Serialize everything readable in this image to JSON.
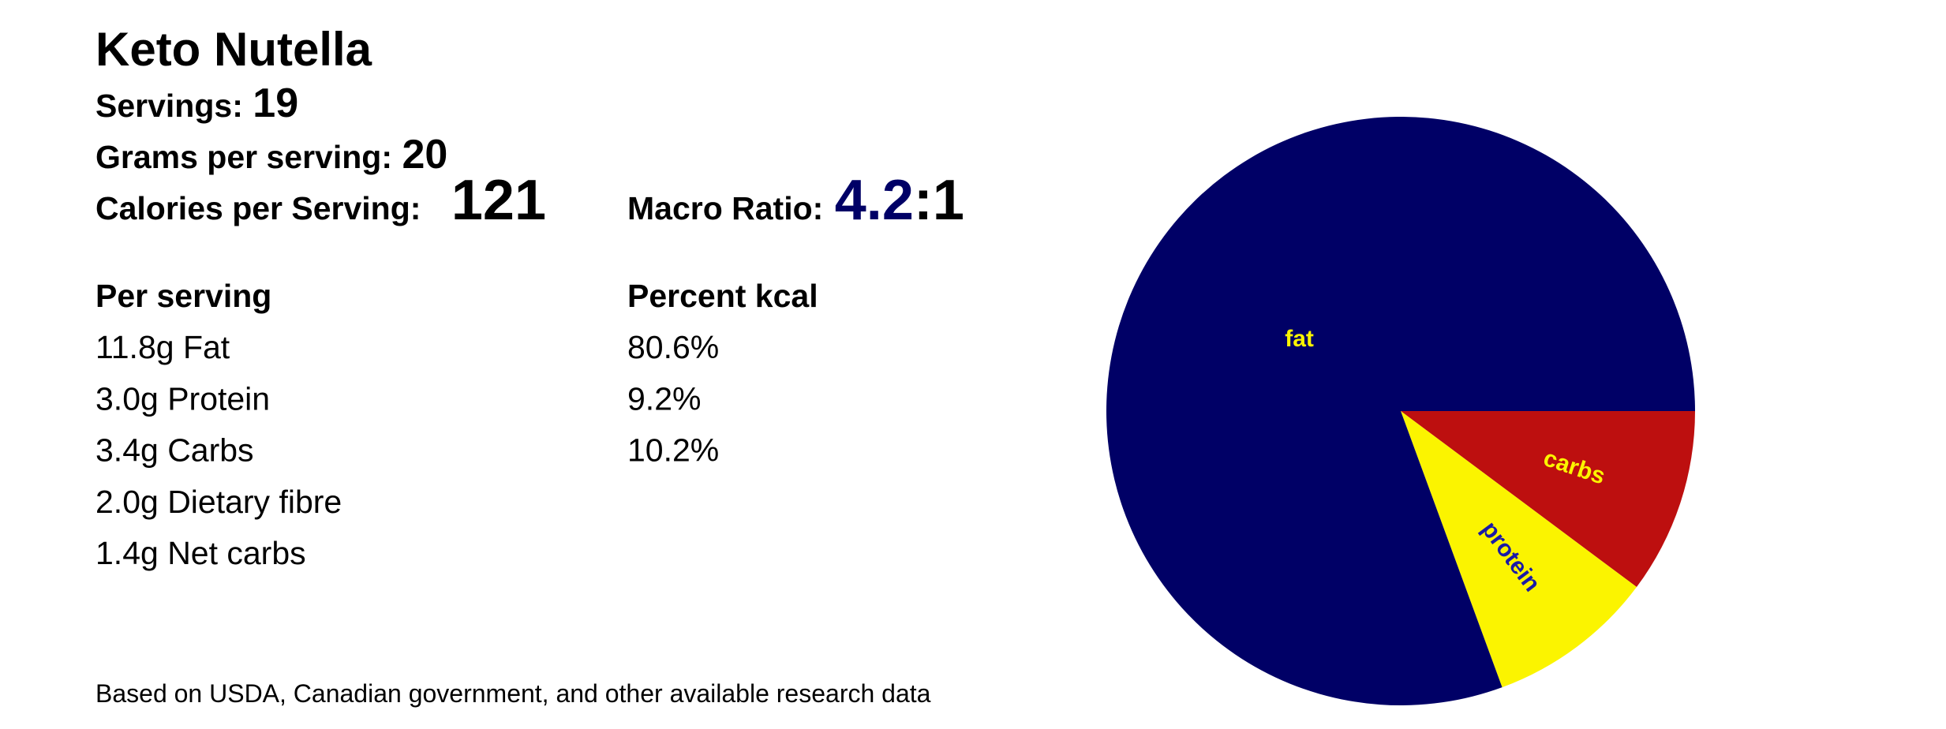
{
  "header": {
    "title": "Keto Nutella",
    "servings": {
      "label": "Servings:",
      "value": "19"
    },
    "grams": {
      "label": "Grams per serving:",
      "value": "20"
    },
    "calories": {
      "label": "Calories per Serving:",
      "value": "121"
    },
    "macro_ratio": {
      "label": "Macro Ratio:",
      "value": "4.2",
      "suffix": ":1"
    }
  },
  "table": {
    "headers": [
      "Per serving",
      "Percent kcal"
    ],
    "rows": [
      [
        "11.8g Fat",
        "80.6%"
      ],
      [
        "3.0g Protein",
        "9.2%"
      ],
      [
        "3.4g Carbs",
        "10.2%"
      ],
      [
        "2.0g Dietary fibre",
        null
      ],
      [
        "1.4g Net carbs",
        null
      ]
    ]
  },
  "footnote": "Based on USDA, Canadian government, and other available research data",
  "chart_data": {
    "type": "pie",
    "categories": [
      "carbs",
      "protein",
      "fat"
    ],
    "values": [
      10.2,
      9.2,
      80.6
    ],
    "colors": [
      "#bd0f0f",
      "#fbf400",
      "#000066"
    ],
    "label_colors": [
      "#fbf400",
      "#1a1aa6",
      "#fbf400"
    ]
  }
}
